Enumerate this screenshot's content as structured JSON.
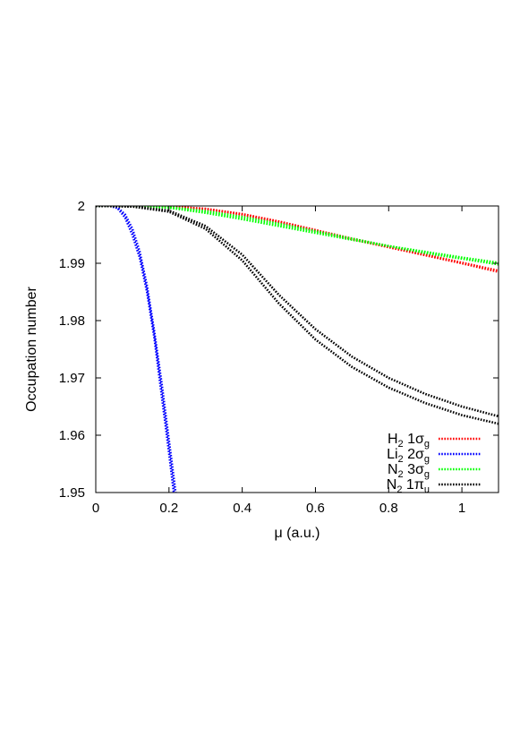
{
  "chart_data": {
    "type": "line",
    "title": "",
    "xlabel": "μ (a.u.)",
    "ylabel": "Occupation number",
    "xlim": [
      0,
      1.1
    ],
    "ylim": [
      1.95,
      2.0
    ],
    "xticks": [
      "0",
      "0.2",
      "0.4",
      "0.6",
      "0.8",
      "1"
    ],
    "xtick_values": [
      0,
      0.2,
      0.4,
      0.6,
      0.8,
      1.0
    ],
    "yticks": [
      "1.95",
      "1.96",
      "1.97",
      "1.98",
      "1.99",
      "2"
    ],
    "ytick_values": [
      1.95,
      1.96,
      1.97,
      1.98,
      1.99,
      2.0
    ],
    "grid": false,
    "legend_position": "bottom-right",
    "line_style": "dotted",
    "series": [
      {
        "name": "H2 1σg",
        "legend": {
          "base": "H",
          "base_sub": "2",
          "orb": " 1σ",
          "orb_sub": "g"
        },
        "color": "#ff0000",
        "curves": [
          {
            "x": [
              0,
              0.1,
              0.2,
              0.3,
              0.4,
              0.5,
              0.6,
              0.7,
              0.8,
              0.9,
              1.0,
              1.1
            ],
            "y": [
              2.0,
              2.0,
              1.9999,
              1.9995,
              1.9985,
              1.9972,
              1.9957,
              1.9942,
              1.9928,
              1.9914,
              1.99,
              1.9885
            ]
          },
          {
            "x": [
              0,
              0.1,
              0.2,
              0.3,
              0.4,
              0.5,
              0.6,
              0.7,
              0.8,
              0.9,
              1.0,
              1.1
            ],
            "y": [
              2.0,
              2.0,
              1.9999,
              1.9995,
              1.9986,
              1.9973,
              1.9958,
              1.9943,
              1.9929,
              1.9915,
              1.9901,
              1.9887
            ]
          }
        ]
      },
      {
        "name": "Li2 2σg",
        "legend": {
          "base": "Li",
          "base_sub": "2",
          "orb": " 2σ",
          "orb_sub": "g"
        },
        "color": "#0000ff",
        "curves": [
          {
            "x": [
              0,
              0.04,
              0.06,
              0.08,
              0.1,
              0.12,
              0.14,
              0.16,
              0.18,
              0.2,
              0.22
            ],
            "y": [
              2.0,
              2.0,
              1.9997,
              1.9985,
              1.996,
              1.992,
              1.986,
              1.978,
              1.969,
              1.959,
              1.949
            ]
          },
          {
            "x": [
              0,
              0.04,
              0.06,
              0.08,
              0.1,
              0.12,
              0.14,
              0.16,
              0.18,
              0.2,
              0.215
            ],
            "y": [
              2.0,
              2.0,
              1.9996,
              1.998,
              1.995,
              1.991,
              1.985,
              1.977,
              1.967,
              1.957,
              1.949
            ]
          }
        ]
      },
      {
        "name": "N2 3σg",
        "legend": {
          "base": "N",
          "base_sub": "2",
          "orb": " 3σ",
          "orb_sub": "g"
        },
        "color": "#00ff00",
        "curves": [
          {
            "x": [
              0,
              0.1,
              0.2,
              0.3,
              0.4,
              0.5,
              0.6,
              0.7,
              0.8,
              0.9,
              1.0,
              1.1
            ],
            "y": [
              2.0,
              2.0,
              1.9998,
              1.9991,
              1.9981,
              1.9969,
              1.9956,
              1.9943,
              1.993,
              1.9918,
              1.9908,
              1.9898
            ]
          },
          {
            "x": [
              0,
              0.1,
              0.2,
              0.3,
              0.4,
              0.5,
              0.6,
              0.7,
              0.8,
              0.9,
              1.0,
              1.1
            ],
            "y": [
              2.0,
              2.0,
              1.9997,
              1.9988,
              1.9977,
              1.9965,
              1.9953,
              1.9941,
              1.993,
              1.992,
              1.991,
              1.9901
            ]
          }
        ]
      },
      {
        "name": "N2 1πu",
        "legend": {
          "base": "N",
          "base_sub": "2",
          "orb": " 1π",
          "orb_sub": "u"
        },
        "color": "#000000",
        "curves": [
          {
            "x": [
              0,
              0.1,
              0.2,
              0.3,
              0.4,
              0.5,
              0.6,
              0.7,
              0.8,
              0.9,
              1.0,
              1.1
            ],
            "y": [
              2.0,
              1.9999,
              1.9992,
              1.9965,
              1.9915,
              1.9845,
              1.9785,
              1.9737,
              1.97,
              1.9672,
              1.965,
              1.9633
            ]
          },
          {
            "x": [
              0,
              0.1,
              0.2,
              0.3,
              0.4,
              0.5,
              0.6,
              0.7,
              0.8,
              0.9,
              1.0,
              1.1
            ],
            "y": [
              2.0,
              1.9999,
              1.999,
              1.996,
              1.9905,
              1.983,
              1.9767,
              1.9719,
              1.9683,
              1.9656,
              1.9635,
              1.962
            ]
          }
        ]
      }
    ]
  }
}
